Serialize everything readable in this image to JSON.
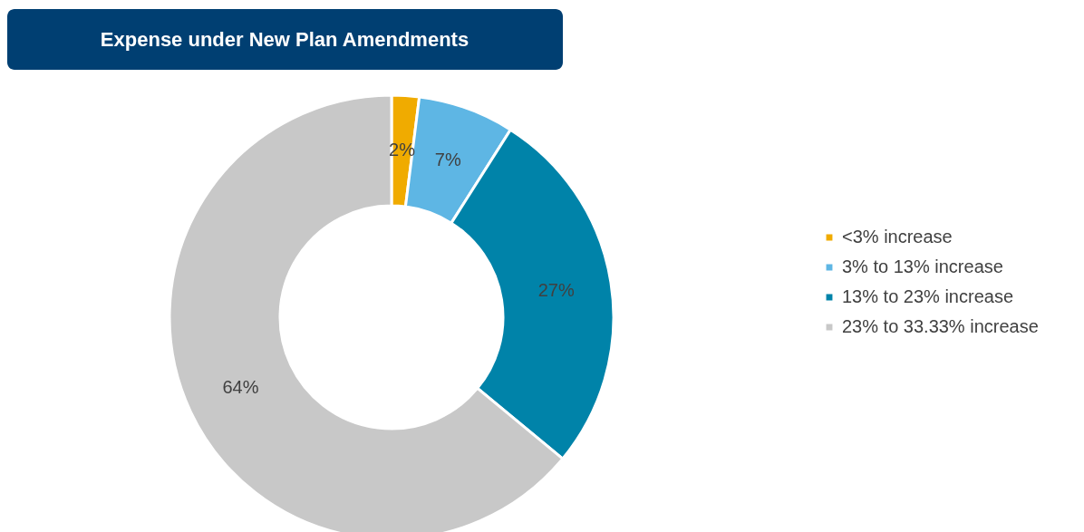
{
  "chart_data": {
    "type": "donut",
    "title": "Expense under New Plan Amendments",
    "categories": [
      "<3% increase",
      "3% to 13% increase",
      "13% to 23% increase",
      "23% to 33.33% increase"
    ],
    "values": [
      2,
      7,
      27,
      64
    ],
    "colors": [
      "#f0ab00",
      "#5eb6e4",
      "#0083a9",
      "#c8c8c8"
    ],
    "value_labels": [
      "2%",
      "7%",
      "27%",
      "64%"
    ],
    "legend": "right"
  }
}
